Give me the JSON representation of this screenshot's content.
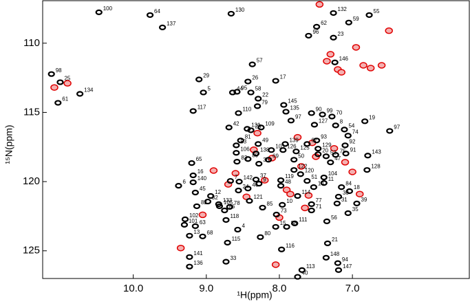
{
  "chart_data": {
    "type": "scatter",
    "x_label": "¹H(ppm)",
    "y_label": "¹⁵N(ppm)",
    "xlim": [
      11.24,
      5.4
    ],
    "ylim": [
      127.0,
      106.93
    ],
    "xticks": [
      {
        "value": 10,
        "label": "10.0"
      },
      {
        "value": 9,
        "label": "9.0"
      },
      {
        "value": 8,
        "label": "8.0"
      },
      {
        "value": 7,
        "label": "7.0"
      }
    ],
    "yticks": [
      110,
      115,
      120,
      125
    ],
    "series": [
      {
        "color": "#000000",
        "labels": [
          "100",
          "64",
          "130",
          "137",
          "132",
          "59",
          "62",
          "96",
          "23",
          "55",
          "98",
          "25",
          "61",
          "134",
          "29",
          "57",
          "5",
          "44",
          "117",
          "26",
          "58",
          "22",
          "95",
          "79",
          "110",
          "17",
          "146",
          "145",
          "135",
          "90",
          "99",
          "70",
          "19",
          "97",
          "97",
          "127",
          "42",
          "28",
          "131",
          "109",
          "81",
          "53",
          "106",
          "8",
          "54",
          "74",
          "92",
          "93",
          "67",
          "129",
          "125",
          "139",
          "103",
          "126",
          "49",
          "138",
          "75",
          "91",
          "143",
          "20",
          "52",
          "47",
          "128",
          "83",
          "89",
          "69",
          "36",
          "65",
          "16",
          "140",
          "6",
          "142",
          "119",
          "37",
          "9",
          "120",
          "122",
          "50",
          "51",
          "104",
          "11",
          "84",
          "18",
          "30",
          "39",
          "31",
          "35",
          "24",
          "46",
          "48",
          "14",
          "133",
          "78",
          "86",
          "121",
          "85",
          "10",
          "73",
          "15",
          "88",
          "111",
          "56",
          "77",
          "71",
          "114",
          "45",
          "32",
          "82",
          "105",
          "12",
          "7",
          "102",
          "13",
          "101",
          "63",
          "68",
          "118",
          "80",
          "4",
          "115",
          "141",
          "136",
          "33",
          "116",
          "21",
          "148",
          "94",
          "147",
          "113",
          "40"
        ],
        "x": [
          10.47,
          9.77,
          8.66,
          9.6,
          7.26,
          7.05,
          7.49,
          7.6,
          7.26,
          6.77,
          11.12,
          11.0,
          11.03,
          10.73,
          9.1,
          8.37,
          9.04,
          8.64,
          9.18,
          8.43,
          8.39,
          8.29,
          8.58,
          8.3,
          8.56,
          8.05,
          7.24,
          7.94,
          7.91,
          7.56,
          7.41,
          7.28,
          6.83,
          6.49,
          7.84,
          7.52,
          8.69,
          8.39,
          8.44,
          8.25,
          8.53,
          8.59,
          8.59,
          7.23,
          7.11,
          7.06,
          7.1,
          7.49,
          7.62,
          7.47,
          7.77,
          7.92,
          8.11,
          7.95,
          8.29,
          8.32,
          7.23,
          7.09,
          6.79,
          7.47,
          7.36,
          7.3,
          6.8,
          8.58,
          8.43,
          8.15,
          8.28,
          9.2,
          9.18,
          9.18,
          9.38,
          8.55,
          7.98,
          8.32,
          8.28,
          7.71,
          7.8,
          7.8,
          7.62,
          7.39,
          7.39,
          7.15,
          7.04,
          7.19,
          6.94,
          7.21,
          7.06,
          8.56,
          8.43,
          7.98,
          7.53,
          8.83,
          8.68,
          8.75,
          8.41,
          8.23,
          7.96,
          8.04,
          8.05,
          7.9,
          7.79,
          7.35,
          7.56,
          7.56,
          7.75,
          9.15,
          8.98,
          9.13,
          8.82,
          8.94,
          8.67,
          9.29,
          9.23,
          9.3,
          9.15,
          9.05,
          8.73,
          8.26,
          8.57,
          8.71,
          9.23,
          9.23,
          8.73,
          7.97,
          7.34,
          7.36,
          7.2,
          7.19,
          7.69,
          7.75
        ],
        "y": [
          107.77,
          107.97,
          107.87,
          108.86,
          107.82,
          108.51,
          108.81,
          109.46,
          109.6,
          107.97,
          112.23,
          112.82,
          114.31,
          113.66,
          112.62,
          111.53,
          113.56,
          113.56,
          114.9,
          112.77,
          113.56,
          114.01,
          113.51,
          114.55,
          115.05,
          112.72,
          111.39,
          114.46,
          114.95,
          115.05,
          115.15,
          115.3,
          115.64,
          116.34,
          115.59,
          115.89,
          116.09,
          116.29,
          116.19,
          116.09,
          117.03,
          117.38,
          117.92,
          115.94,
          116.24,
          116.68,
          117.38,
          117.03,
          117.28,
          117.62,
          117.82,
          117.28,
          117.72,
          117.72,
          117.28,
          117.97,
          118.07,
          117.97,
          118.12,
          118.02,
          118.17,
          118.61,
          119.16,
          118.56,
          118.37,
          118.42,
          118.71,
          118.66,
          119.55,
          120.05,
          120.3,
          120.0,
          119.9,
          119.85,
          120.15,
          119.46,
          119.16,
          118.42,
          119.95,
          119.7,
          120.1,
          120.4,
          120.69,
          121.09,
          121.58,
          121.58,
          122.28,
          120.64,
          120.5,
          120.3,
          120.4,
          121.63,
          121.83,
          122.08,
          121.39,
          121.88,
          121.68,
          122.38,
          123.27,
          123.27,
          123.02,
          122.87,
          121.63,
          122.08,
          121.04,
          120.79,
          121.44,
          121.78,
          121.78,
          121.04,
          119.95,
          122.72,
          123.91,
          123.12,
          123.22,
          123.96,
          122.77,
          124.01,
          123.47,
          124.41,
          125.45,
          126.14,
          125.79,
          124.9,
          124.46,
          125.5,
          125.89,
          126.39,
          126.39,
          126.88
        ]
      },
      {
        "color": "#e00000",
        "x": [
          7.3,
          7.35,
          7.2,
          6.85,
          6.75,
          6.6,
          6.5,
          6.95,
          7.45,
          7.15,
          8.1,
          8.6,
          8.2,
          7.9,
          7.7,
          7.6,
          7.1,
          7.0,
          8.45,
          8.0,
          7.85,
          7.5,
          8.9,
          9.35,
          8.35,
          7.75,
          8.3,
          7.25,
          6.9,
          7.65,
          11.08,
          10.9,
          9.05,
          8.7,
          7.55,
          8.05
        ],
        "y": [
          110.8,
          111.3,
          111.9,
          111.6,
          111.8,
          111.6,
          109.1,
          110.3,
          107.2,
          112.1,
          118.3,
          119.4,
          119.9,
          120.6,
          118.9,
          121.0,
          118.6,
          119.3,
          121.1,
          122.6,
          120.9,
          118.2,
          119.2,
          124.8,
          117.7,
          116.8,
          116.5,
          117.6,
          120.9,
          121.9,
          113.2,
          112.9,
          122.4,
          120.2,
          117.2,
          126.0
        ]
      }
    ]
  }
}
